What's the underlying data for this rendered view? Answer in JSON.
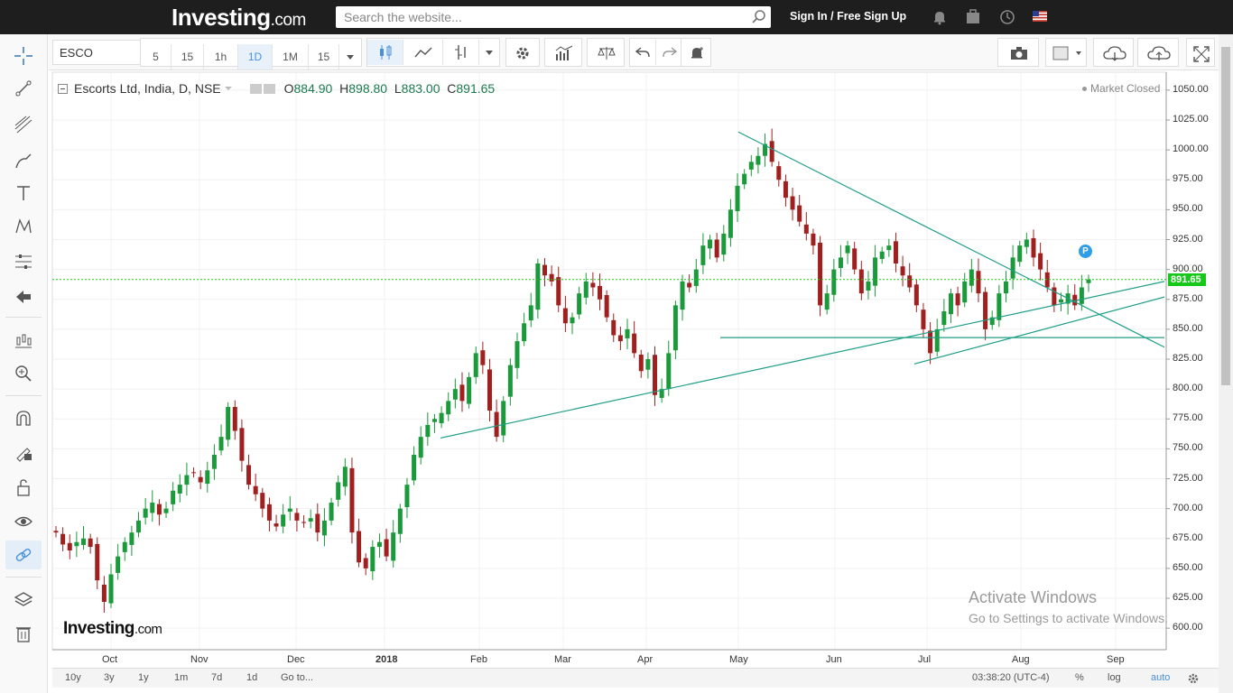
{
  "nav": {
    "logo_main": "Investing",
    "logo_suffix": ".com",
    "search_placeholder": "Search the website...",
    "signin_label": "Sign In / Free Sign Up",
    "icons": [
      "bell-icon",
      "portfolio-icon",
      "clock-icon",
      "us-flag-icon"
    ]
  },
  "left_toolbar": {
    "tools": [
      "crosshair-icon",
      "trend-line-icon",
      "pitchfork-icon",
      "brush-icon",
      "text-icon",
      "pattern-icon",
      "measure-icon",
      "back-arrow-icon",
      "forecast-icon",
      "zoom-icon",
      "magnet-icon",
      "lock-draw-icon",
      "unlock-icon",
      "eye-icon",
      "link-icon",
      "layers-icon",
      "trash-icon"
    ]
  },
  "chart_toolbar": {
    "symbol": "ESCO",
    "intervals": [
      "5",
      "15",
      "1h",
      "1D",
      "1M",
      "15"
    ],
    "selected_interval": "1D"
  },
  "legend": {
    "title": "Escorts Ltd, India, D, NSE",
    "open_label": "O",
    "open": "884.90",
    "high_label": "H",
    "high": "898.80",
    "low_label": "L",
    "low": "883.00",
    "close_label": "C",
    "close": "891.65"
  },
  "status": {
    "market": "Market Closed"
  },
  "price_tag": "891.65",
  "p_badge": "P",
  "bottom_bar": {
    "ranges": [
      "10y",
      "3y",
      "1y",
      "1m",
      "7d",
      "1d"
    ],
    "goto": "Go to...",
    "time": "03:38:20 (UTC-4)",
    "percent": "%",
    "log": "log",
    "auto": "auto"
  },
  "watermark": {
    "logo_main": "Investing",
    "logo_suffix": ".com"
  },
  "windows": {
    "line1": "Activate Windows",
    "line2": "Go to Settings to activate Windows."
  },
  "chart_data": {
    "type": "candlestick",
    "title": "Escorts Ltd, India, D, NSE",
    "y_ticks": [
      "1050.00",
      "1025.00",
      "1000.00",
      "975.00",
      "950.00",
      "925.00",
      "900.00",
      "875.00",
      "850.00",
      "825.00",
      "800.00",
      "775.00",
      "750.00",
      "725.00",
      "700.00",
      "675.00",
      "650.00",
      "625.00",
      "600.00"
    ],
    "ylim": [
      582,
      1065
    ],
    "x_ticks": [
      "Oct",
      "Nov",
      "Dec",
      "2018",
      "Feb",
      "Mar",
      "Apr",
      "May",
      "Jun",
      "Jul",
      "Aug",
      "Sep"
    ],
    "last_close": 891.65,
    "series": [
      {
        "name": "Escorts Ltd",
        "closes": [
          680,
          670,
          665,
          672,
          675,
          668,
          640,
          622,
          645,
          660,
          672,
          680,
          690,
          700,
          705,
          695,
          700,
          715,
          720,
          728,
          730,
          722,
          732,
          745,
          760,
          785,
          765,
          740,
          720,
          712,
          700,
          690,
          685,
          695,
          700,
          690,
          688,
          692,
          680,
          690,
          705,
          722,
          735,
          680,
          655,
          650,
          668,
          672,
          660,
          680,
          700,
          720,
          745,
          760,
          770,
          775,
          780,
          790,
          800,
          790,
          810,
          830,
          820,
          782,
          760,
          790,
          820,
          840,
          855,
          870,
          905,
          895,
          890,
          870,
          855,
          860,
          880,
          890,
          885,
          875,
          860,
          845,
          840,
          850,
          830,
          815,
          825,
          795,
          800,
          830,
          870,
          890,
          885,
          900,
          920,
          925,
          910,
          930,
          950,
          970,
          980,
          990,
          995,
          1005,
          990,
          975,
          960,
          950,
          940,
          930,
          920,
          870,
          880,
          900,
          910,
          920,
          900,
          880,
          890,
          910,
          915,
          920,
          905,
          895,
          885,
          870,
          850,
          830,
          850,
          865,
          880,
          870,
          890,
          900,
          880,
          850,
          860,
          880,
          890,
          910,
          920,
          925,
          910,
          900,
          885,
          870,
          875,
          880,
          870,
          885,
          891.65
        ]
      }
    ],
    "drawn_lines": [
      {
        "from": [
          759,
          "2018-01"
        ],
        "to": [
          890,
          "2018-08"
        ]
      },
      {
        "from": [
          1015,
          "2018-05"
        ],
        "to": [
          835,
          "2018-09"
        ]
      },
      {
        "from": [
          843,
          "2018-04"
        ],
        "to": [
          843,
          "2018-09"
        ]
      },
      {
        "from": [
          821,
          "2018-07"
        ],
        "to": [
          877,
          "2018-09"
        ]
      }
    ],
    "current_price_line": 891.65
  }
}
